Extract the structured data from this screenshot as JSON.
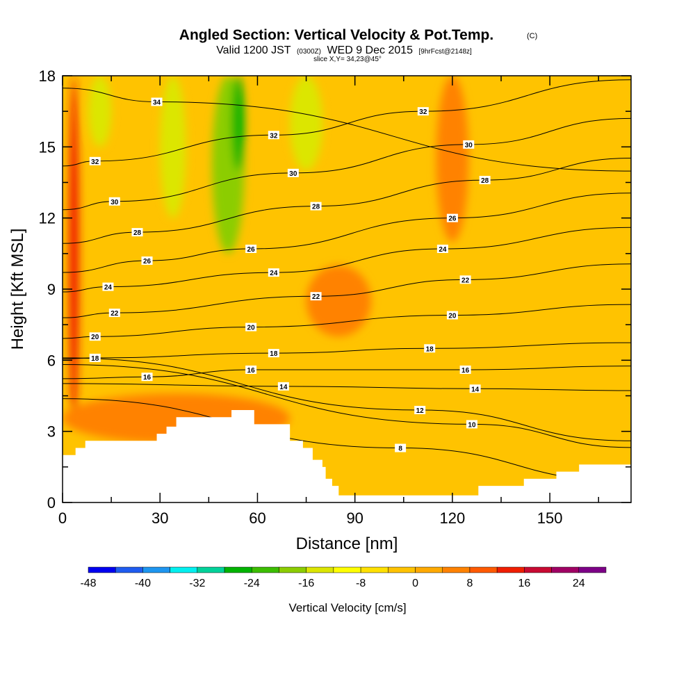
{
  "chart_data": {
    "type": "heatmap",
    "title": "Angled Section: Vertical Velocity & Pot.Temp.",
    "title_unit": "(C)",
    "subtitle": {
      "valid": "Valid 1200 JST",
      "utc": "(0300Z)",
      "date": "WED 9 Dec 2015",
      "fcst": "[9hrFcst@2148z]"
    },
    "slice": "slice X,Y= 34,23@45°",
    "xlabel": "Distance [nm]",
    "ylabel": "Height [Kft MSL]",
    "xlim": [
      0,
      175
    ],
    "ylim": [
      0,
      18
    ],
    "xticks": [
      0,
      30,
      60,
      90,
      120,
      150
    ],
    "yticks": [
      0,
      3,
      6,
      9,
      12,
      15,
      18
    ],
    "terrain_kft": [
      [
        0,
        2.0
      ],
      [
        4,
        2.0
      ],
      [
        4,
        2.3
      ],
      [
        7,
        2.3
      ],
      [
        7,
        2.6
      ],
      [
        29,
        2.6
      ],
      [
        29,
        2.9
      ],
      [
        32,
        2.9
      ],
      [
        32,
        3.2
      ],
      [
        35,
        3.2
      ],
      [
        35,
        3.6
      ],
      [
        52,
        3.6
      ],
      [
        52,
        3.9
      ],
      [
        59,
        3.9
      ],
      [
        59,
        3.3
      ],
      [
        70,
        3.3
      ],
      [
        70,
        2.6
      ],
      [
        74,
        2.6
      ],
      [
        74,
        2.3
      ],
      [
        77,
        2.3
      ],
      [
        77,
        1.8
      ],
      [
        80,
        1.8
      ],
      [
        80,
        1.5
      ],
      [
        81,
        1.5
      ],
      [
        81,
        1.0
      ],
      [
        83,
        1.0
      ],
      [
        83,
        0.7
      ],
      [
        85,
        0.7
      ],
      [
        85,
        0.3
      ],
      [
        128,
        0.3
      ],
      [
        128,
        0.7
      ],
      [
        142,
        0.7
      ],
      [
        142,
        1.0
      ],
      [
        152,
        1.0
      ],
      [
        152,
        1.3
      ],
      [
        159,
        1.3
      ],
      [
        159,
        1.6
      ],
      [
        175,
        1.6
      ]
    ],
    "vertical_velocity_features": [
      {
        "x": [
          2,
          5
        ],
        "y_kft": [
          3.2,
          18
        ],
        "value": 12
      },
      {
        "x": [
          8,
          15
        ],
        "y_kft": [
          15,
          18
        ],
        "value": -16
      },
      {
        "x": [
          30,
          38
        ],
        "y_kft": [
          12,
          18
        ],
        "value": -16
      },
      {
        "x": [
          46,
          56
        ],
        "y_kft": [
          10.5,
          18
        ],
        "value": -20
      },
      {
        "x": [
          52,
          56
        ],
        "y_kft": [
          14,
          18
        ],
        "value": -28
      },
      {
        "x": [
          70,
          80
        ],
        "y_kft": [
          14,
          18
        ],
        "value": -16
      },
      {
        "x": [
          115,
          125
        ],
        "y_kft": [
          11,
          18
        ],
        "value": 4
      },
      {
        "x": [
          75,
          95
        ],
        "y_kft": [
          7,
          10
        ],
        "value": 4
      },
      {
        "x": [
          0,
          70
        ],
        "y_kft": [
          2.5,
          4.6
        ],
        "value": 6
      }
    ],
    "isentrope_labels": [
      {
        "value": "34",
        "x": 29,
        "y_kft": 16.9
      },
      {
        "value": "32",
        "x": 10,
        "y_kft": 14.4
      },
      {
        "value": "30",
        "x": 16,
        "y_kft": 12.7
      },
      {
        "value": "28",
        "x": 23,
        "y_kft": 11.4
      },
      {
        "value": "26",
        "x": 26,
        "y_kft": 10.2
      },
      {
        "value": "24",
        "x": 14,
        "y_kft": 9.1
      },
      {
        "value": "22",
        "x": 16,
        "y_kft": 8.0
      },
      {
        "value": "20",
        "x": 10,
        "y_kft": 7.0
      },
      {
        "value": "18",
        "x": 10,
        "y_kft": 6.1
      },
      {
        "value": "16",
        "x": 26,
        "y_kft": 5.3
      },
      {
        "value": "32",
        "x": 65,
        "y_kft": 15.5
      },
      {
        "value": "30",
        "x": 71,
        "y_kft": 13.9
      },
      {
        "value": "28",
        "x": 78,
        "y_kft": 12.5
      },
      {
        "value": "26",
        "x": 58,
        "y_kft": 10.7
      },
      {
        "value": "24",
        "x": 65,
        "y_kft": 9.7
      },
      {
        "value": "22",
        "x": 78,
        "y_kft": 8.7
      },
      {
        "value": "20",
        "x": 58,
        "y_kft": 7.4
      },
      {
        "value": "18",
        "x": 65,
        "y_kft": 6.3
      },
      {
        "value": "16",
        "x": 58,
        "y_kft": 5.6
      },
      {
        "value": "14",
        "x": 68,
        "y_kft": 4.9
      },
      {
        "value": "32",
        "x": 111,
        "y_kft": 16.5
      },
      {
        "value": "30",
        "x": 125,
        "y_kft": 15.1
      },
      {
        "value": "28",
        "x": 130,
        "y_kft": 13.6
      },
      {
        "value": "26",
        "x": 120,
        "y_kft": 12.0
      },
      {
        "value": "24",
        "x": 117,
        "y_kft": 10.7
      },
      {
        "value": "22",
        "x": 124,
        "y_kft": 9.4
      },
      {
        "value": "20",
        "x": 120,
        "y_kft": 7.9
      },
      {
        "value": "18",
        "x": 113,
        "y_kft": 6.5
      },
      {
        "value": "16",
        "x": 124,
        "y_kft": 5.6
      },
      {
        "value": "14",
        "x": 127,
        "y_kft": 4.8
      },
      {
        "value": "12",
        "x": 110,
        "y_kft": 3.9
      },
      {
        "value": "10",
        "x": 126,
        "y_kft": 3.3
      },
      {
        "value": "8",
        "x": 104,
        "y_kft": 2.3
      }
    ],
    "colorbar": {
      "title": "Vertical Velocity [cm/s]",
      "tick_labels": [
        "-48",
        "-40",
        "-32",
        "-24",
        "-16",
        "-8",
        "0",
        "8",
        "16",
        "24"
      ],
      "colors": [
        "#0000f0",
        "#1f5cf0",
        "#1e96f0",
        "#00f0f0",
        "#00d29a",
        "#00b400",
        "#3cbe00",
        "#8ccd00",
        "#dce600",
        "#ffff00",
        "#ffe100",
        "#ffc300",
        "#ffaa00",
        "#ff8200",
        "#ff5a00",
        "#f01e00",
        "#c80a32",
        "#a00064",
        "#7d0087"
      ]
    }
  }
}
